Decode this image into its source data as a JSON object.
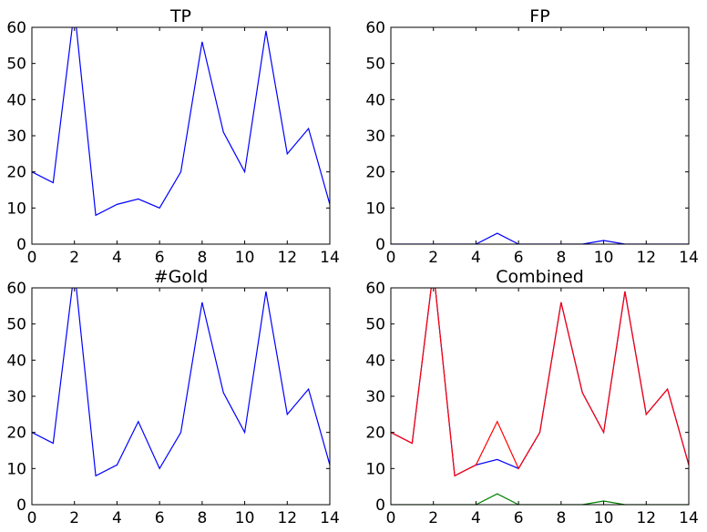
{
  "chart_data": [
    {
      "type": "line",
      "title": "TP",
      "x": [
        0,
        1,
        2,
        3,
        4,
        5,
        6,
        7,
        8,
        9,
        10,
        11,
        12,
        13,
        14
      ],
      "series": [
        {
          "color": "#0000ff",
          "values": [
            20,
            17,
            65,
            8,
            11,
            12.5,
            10,
            20,
            56,
            31,
            20,
            59,
            25,
            32,
            11
          ]
        }
      ],
      "xlim": [
        0,
        14
      ],
      "ylim": [
        0,
        60
      ],
      "xticks": [
        0,
        2,
        4,
        6,
        8,
        10,
        12,
        14
      ],
      "yticks": [
        0,
        10,
        20,
        30,
        40,
        50,
        60
      ],
      "grid": false
    },
    {
      "type": "line",
      "title": "FP",
      "x": [
        0,
        1,
        2,
        3,
        4,
        5,
        6,
        7,
        8,
        9,
        10,
        11,
        12,
        13,
        14
      ],
      "series": [
        {
          "color": "#0000ff",
          "values": [
            0,
            0,
            0,
            0,
            0,
            3,
            0,
            0,
            0,
            0,
            1,
            0,
            0,
            0,
            0
          ]
        }
      ],
      "xlim": [
        0,
        14
      ],
      "ylim": [
        0,
        60
      ],
      "xticks": [
        0,
        2,
        4,
        6,
        8,
        10,
        12,
        14
      ],
      "yticks": [
        0,
        10,
        20,
        30,
        40,
        50,
        60
      ],
      "grid": false
    },
    {
      "type": "line",
      "title": "#Gold",
      "x": [
        0,
        1,
        2,
        3,
        4,
        5,
        6,
        7,
        8,
        9,
        10,
        11,
        12,
        13,
        14
      ],
      "series": [
        {
          "color": "#0000ff",
          "values": [
            20,
            17,
            65,
            8,
            11,
            23,
            10,
            20,
            56,
            31,
            20,
            59,
            25,
            32,
            11
          ]
        }
      ],
      "xlim": [
        0,
        14
      ],
      "ylim": [
        0,
        60
      ],
      "xticks": [
        0,
        2,
        4,
        6,
        8,
        10,
        12,
        14
      ],
      "yticks": [
        0,
        10,
        20,
        30,
        40,
        50,
        60
      ],
      "grid": false
    },
    {
      "type": "line",
      "title": "Combined",
      "x": [
        0,
        1,
        2,
        3,
        4,
        5,
        6,
        7,
        8,
        9,
        10,
        11,
        12,
        13,
        14
      ],
      "series": [
        {
          "color": "#0000ff",
          "values": [
            20,
            17,
            65,
            8,
            11,
            12.5,
            10,
            20,
            56,
            31,
            20,
            59,
            25,
            32,
            11
          ]
        },
        {
          "color": "#008000",
          "values": [
            0,
            0,
            0,
            0,
            0,
            3,
            0,
            0,
            0,
            0,
            1,
            0,
            0,
            0,
            0
          ]
        },
        {
          "color": "#ff0000",
          "values": [
            20,
            17,
            65,
            8,
            11,
            23,
            10,
            20,
            56,
            31,
            20,
            59,
            25,
            32,
            11
          ]
        }
      ],
      "xlim": [
        0,
        14
      ],
      "ylim": [
        0,
        60
      ],
      "xticks": [
        0,
        2,
        4,
        6,
        8,
        10,
        12,
        14
      ],
      "yticks": [
        0,
        10,
        20,
        30,
        40,
        50,
        60
      ],
      "grid": false
    }
  ]
}
